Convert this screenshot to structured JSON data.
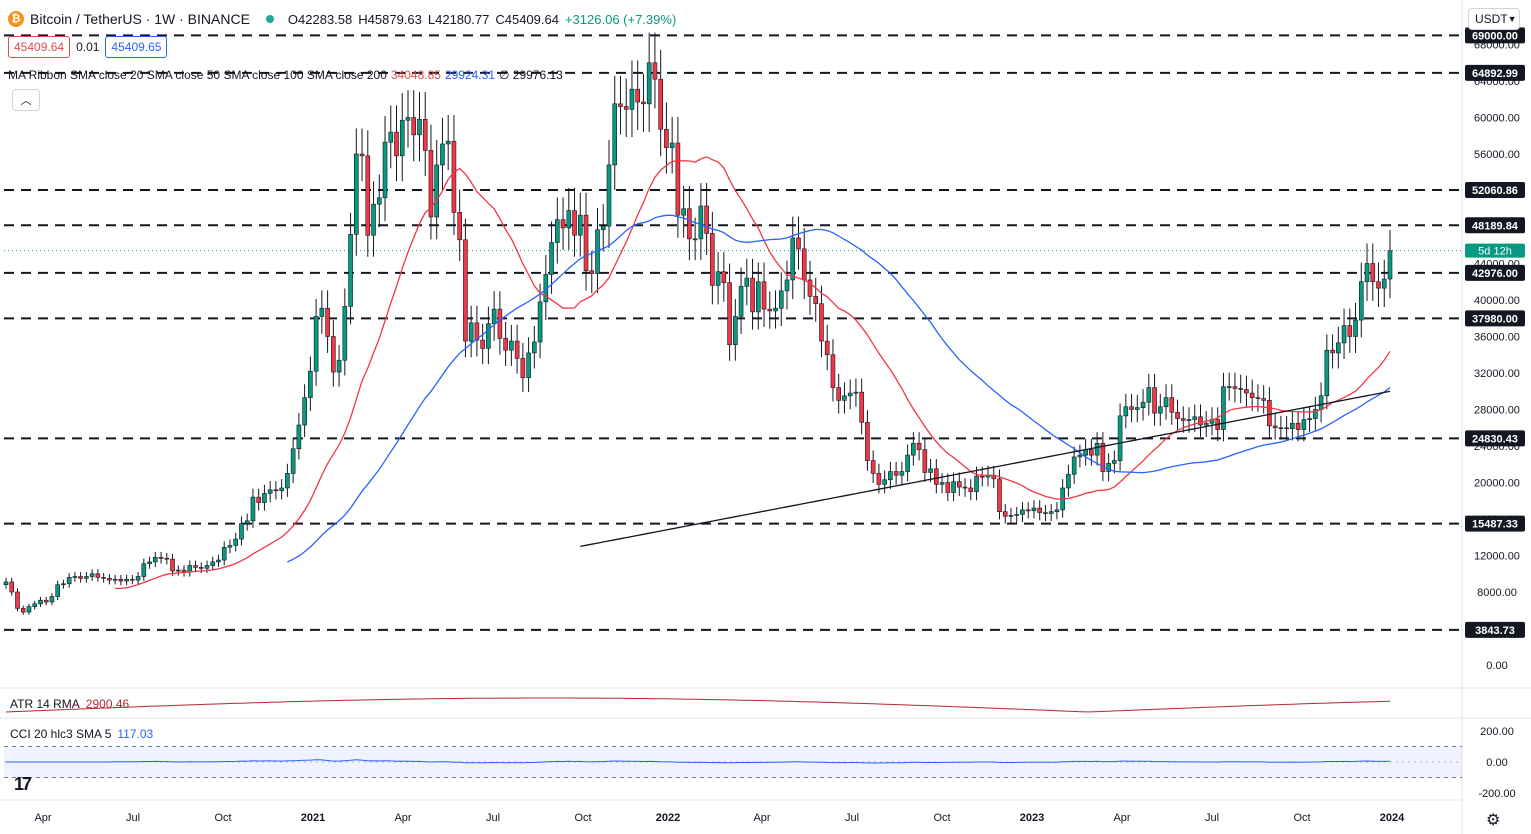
{
  "header": {
    "symbol_title": "Bitcoin / TetherUS · 1W · BINANCE",
    "open": "O42283.58",
    "high": "H45879.63",
    "low": "L42180.77",
    "close": "C45409.64",
    "change": "+3126.06 (+7.39%)"
  },
  "quote": {
    "sell": "45409.64",
    "spread": "0.01",
    "buy": "45409.65"
  },
  "ribbon_legend": {
    "label": "MA Ribbon SMA close 20 SMA close 50 SMA close 100 SMA close 200",
    "v1": "34048.85",
    "v2": "29924.31",
    "v3": "∅ 29976.13"
  },
  "currency": "USDT",
  "atr": {
    "label": "ATR 14 RMA",
    "value": "2900.46"
  },
  "cci": {
    "label": "CCI 20 hlc3 SMA 5",
    "value": "117.03"
  },
  "price_ticks": [
    "68000.00",
    "64000.00",
    "60000.00",
    "56000.00",
    "52000.00",
    "48000.00",
    "44000.00",
    "40000.00",
    "36000.00",
    "32000.00",
    "28000.00",
    "24000.00",
    "20000.00",
    "16000.00",
    "12000.00",
    "8000.00",
    "4000.00",
    "0.00"
  ],
  "levels": [
    "69000.00",
    "64892.99",
    "52060.86",
    "48189.84",
    "42976.00",
    "37980.00",
    "24830.43",
    "15487.33",
    "3843.73"
  ],
  "countdown": "5d 12h",
  "cci_ticks": [
    "200.00",
    "0.00",
    "-200.00"
  ],
  "x_ticks": [
    "Apr",
    "Jul",
    "Oct",
    "2021",
    "Apr",
    "Jul",
    "Oct",
    "2022",
    "Apr",
    "Jul",
    "Oct",
    "2023",
    "Apr",
    "Jul",
    "Oct",
    "2024"
  ],
  "colors": {
    "up": "#089981",
    "down": "#f23645",
    "sma20": "#f23645",
    "sma50": "#2962ff",
    "sma200": "#131722",
    "atr": "#b22833",
    "cci": "#2962ff"
  },
  "chart_data": {
    "type": "candlestick",
    "title": "Bitcoin / TetherUS · 1W · BINANCE",
    "levels": [
      69000,
      64892.99,
      52060.86,
      48189.84,
      42976,
      37980,
      24830.43,
      15487.33,
      3843.73
    ],
    "ylim": [
      0,
      70000
    ],
    "last_close": 45409.64
  }
}
